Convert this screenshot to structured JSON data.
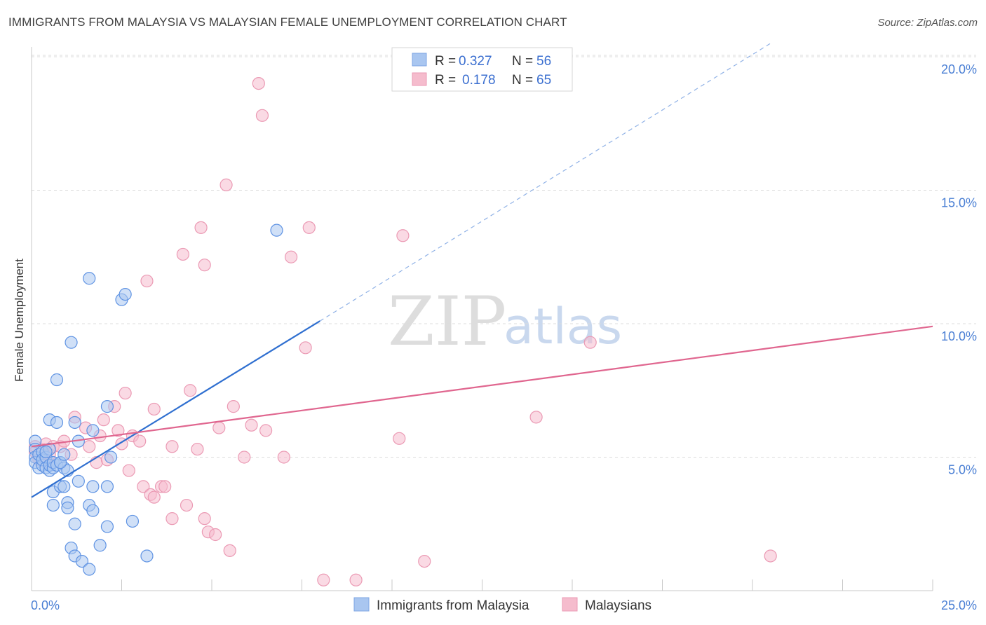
{
  "title": "IMMIGRANTS FROM MALAYSIA VS MALAYSIAN FEMALE UNEMPLOYMENT CORRELATION CHART",
  "source": "Source: ZipAtlas.com",
  "watermark": {
    "left": "ZIP",
    "right": "atlas"
  },
  "colors": {
    "blue": "#4a86e8",
    "blue_fill": "#a9c6f0",
    "pink": "#e8709a",
    "pink_fill": "#f5bccd",
    "grid": "#dcdcdc"
  },
  "legend": {
    "series1": {
      "r_label": "R = ",
      "r_value": "0.327",
      "n_label": "N = ",
      "n_value": "56"
    },
    "series2": {
      "r_label": "R = ",
      "r_value": "0.178",
      "n_label": "N = ",
      "n_value": "65"
    }
  },
  "chart_data": {
    "type": "scatter",
    "title": "IMMIGRANTS FROM MALAYSIA VS MALAYSIAN FEMALE UNEMPLOYMENT CORRELATION CHART",
    "xlabel": "Immigrants from Malaysia",
    "ylabel": "Female Unemployment",
    "xlim": [
      0,
      25
    ],
    "ylim": [
      0,
      20
    ],
    "x_tick_labels": [
      "0.0%",
      "25.0%"
    ],
    "y_ticks": [
      5,
      10,
      15,
      20
    ],
    "y_tick_labels": [
      "5.0%",
      "10.0%",
      "15.0%",
      "20.0%"
    ],
    "grid": true,
    "legend_position": "top-center",
    "series": [
      {
        "name": "Immigrants from Malaysia",
        "color": "#4a86e8",
        "r": 0.327,
        "n": 56,
        "trend": {
          "x0": 0,
          "y0": 3.5,
          "x1": 8.0,
          "y1": 10.1,
          "dashed_to_x": 20.5,
          "dashed_to_y": 20.5
        },
        "points": [
          [
            0.1,
            5.6
          ],
          [
            0.1,
            5.3
          ],
          [
            0.1,
            5.0
          ],
          [
            0.1,
            4.8
          ],
          [
            0.2,
            4.6
          ],
          [
            0.2,
            5.1
          ],
          [
            0.3,
            4.7
          ],
          [
            0.3,
            5.2
          ],
          [
            0.3,
            4.9
          ],
          [
            0.4,
            4.6
          ],
          [
            0.4,
            5.0
          ],
          [
            0.5,
            4.5
          ],
          [
            0.5,
            4.7
          ],
          [
            0.5,
            5.3
          ],
          [
            0.6,
            4.6
          ],
          [
            0.6,
            4.8
          ],
          [
            0.7,
            4.7
          ],
          [
            0.8,
            4.8
          ],
          [
            0.9,
            4.6
          ],
          [
            1.0,
            4.5
          ],
          [
            0.5,
            6.4
          ],
          [
            0.7,
            6.3
          ],
          [
            0.6,
            3.7
          ],
          [
            0.8,
            3.9
          ],
          [
            0.9,
            3.9
          ],
          [
            0.6,
            3.2
          ],
          [
            1.0,
            3.3
          ],
          [
            1.0,
            3.1
          ],
          [
            0.7,
            7.9
          ],
          [
            1.1,
            9.3
          ],
          [
            1.6,
            11.7
          ],
          [
            2.5,
            10.9
          ],
          [
            2.6,
            11.1
          ],
          [
            1.2,
            6.3
          ],
          [
            1.3,
            5.6
          ],
          [
            1.7,
            6.0
          ],
          [
            2.1,
            6.9
          ],
          [
            2.2,
            5.0
          ],
          [
            1.3,
            4.1
          ],
          [
            1.7,
            3.9
          ],
          [
            2.1,
            3.9
          ],
          [
            1.6,
            3.2
          ],
          [
            1.7,
            3.0
          ],
          [
            1.2,
            2.5
          ],
          [
            2.1,
            2.4
          ],
          [
            2.8,
            2.6
          ],
          [
            1.1,
            1.6
          ],
          [
            1.9,
            1.7
          ],
          [
            1.2,
            1.3
          ],
          [
            1.4,
            1.1
          ],
          [
            1.6,
            0.8
          ],
          [
            3.2,
            1.3
          ],
          [
            6.8,
            13.5
          ],
          [
            0.8,
            4.8
          ],
          [
            0.4,
            5.2
          ],
          [
            0.9,
            5.1
          ]
        ]
      },
      {
        "name": "Malaysians",
        "color": "#e8709a",
        "r": 0.178,
        "n": 65,
        "trend": {
          "x0": 0,
          "y0": 5.4,
          "x1": 25,
          "y1": 9.9
        },
        "points": [
          [
            0.1,
            5.4
          ],
          [
            0.1,
            5.2
          ],
          [
            0.2,
            5.0
          ],
          [
            0.3,
            5.3
          ],
          [
            0.4,
            5.5
          ],
          [
            0.5,
            5.1
          ],
          [
            0.6,
            5.4
          ],
          [
            0.8,
            5.4
          ],
          [
            0.9,
            5.6
          ],
          [
            1.1,
            5.1
          ],
          [
            0.2,
            4.9
          ],
          [
            0.4,
            4.8
          ],
          [
            1.2,
            6.5
          ],
          [
            1.5,
            6.1
          ],
          [
            1.6,
            5.4
          ],
          [
            1.8,
            4.8
          ],
          [
            1.9,
            5.8
          ],
          [
            2.0,
            6.4
          ],
          [
            2.1,
            4.9
          ],
          [
            2.3,
            6.9
          ],
          [
            2.4,
            6.0
          ],
          [
            2.5,
            5.5
          ],
          [
            2.6,
            7.4
          ],
          [
            2.8,
            5.8
          ],
          [
            3.0,
            5.6
          ],
          [
            2.7,
            4.5
          ],
          [
            3.1,
            3.9
          ],
          [
            3.3,
            3.6
          ],
          [
            3.4,
            3.5
          ],
          [
            3.6,
            3.9
          ],
          [
            3.7,
            3.9
          ],
          [
            3.4,
            6.8
          ],
          [
            3.9,
            2.7
          ],
          [
            3.9,
            5.4
          ],
          [
            4.3,
            3.2
          ],
          [
            4.4,
            7.5
          ],
          [
            4.6,
            5.3
          ],
          [
            4.8,
            2.7
          ],
          [
            4.9,
            2.2
          ],
          [
            5.1,
            2.1
          ],
          [
            5.2,
            6.1
          ],
          [
            5.6,
            6.9
          ],
          [
            5.5,
            1.5
          ],
          [
            5.9,
            5.0
          ],
          [
            6.1,
            6.2
          ],
          [
            6.5,
            6.0
          ],
          [
            7.0,
            5.0
          ],
          [
            4.2,
            12.6
          ],
          [
            4.7,
            13.6
          ],
          [
            4.8,
            12.2
          ],
          [
            5.4,
            15.2
          ],
          [
            6.4,
            17.8
          ],
          [
            7.2,
            12.5
          ],
          [
            7.7,
            13.6
          ],
          [
            3.2,
            11.6
          ],
          [
            7.6,
            9.1
          ],
          [
            10.2,
            5.7
          ],
          [
            10.3,
            13.3
          ],
          [
            10.9,
            1.1
          ],
          [
            14.0,
            6.5
          ],
          [
            15.5,
            9.3
          ],
          [
            20.5,
            1.3
          ],
          [
            8.1,
            0.4
          ],
          [
            9.0,
            0.4
          ],
          [
            6.3,
            19.0
          ]
        ]
      }
    ]
  }
}
